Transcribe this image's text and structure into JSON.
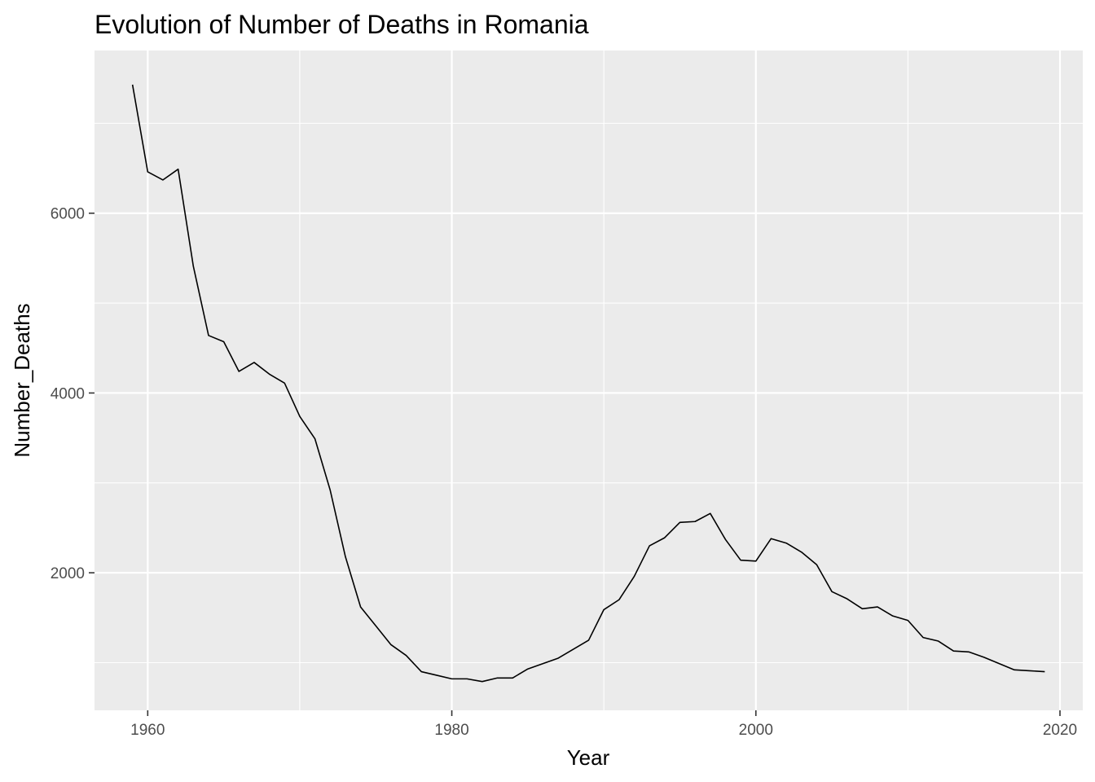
{
  "chart_data": {
    "type": "line",
    "title": "Evolution of Number of Deaths in Romania",
    "xlabel": "Year",
    "ylabel": "Number_Deaths",
    "xlim": [
      1956.5,
      2021.5
    ],
    "ylim": [
      470,
      7810
    ],
    "x_ticks": [
      1960,
      1980,
      2000,
      2020
    ],
    "x_tick_labels": [
      "1960",
      "1980",
      "2000",
      "2020"
    ],
    "x_minor_ticks": [
      1970,
      1990,
      2010
    ],
    "y_ticks": [
      2000,
      4000,
      6000
    ],
    "y_tick_labels": [
      "2000",
      "4000",
      "6000"
    ],
    "y_minor_ticks": [
      1000,
      3000,
      5000,
      7000
    ],
    "grid": true,
    "legend": "none",
    "colors": {
      "panel": "#EBEBEB",
      "grid": "#FFFFFF",
      "line": "#000000"
    },
    "series": [
      {
        "x": [
          1959,
          1960,
          1961,
          1962,
          1963,
          1964,
          1965,
          1966,
          1967,
          1968,
          1969,
          1970,
          1971,
          1972,
          1973,
          1974,
          1975,
          1976,
          1977,
          1978,
          1979,
          1980,
          1981,
          1982,
          1983,
          1984,
          1985,
          1986,
          1987,
          1988,
          1989,
          1990,
          1991,
          1992,
          1993,
          1994,
          1995,
          1996,
          1997,
          1998,
          1999,
          2000,
          2001,
          2002,
          2003,
          2004,
          2005,
          2006,
          2007,
          2008,
          2009,
          2010,
          2011,
          2012,
          2013,
          2014,
          2015,
          2016,
          2017,
          2018,
          2019
        ],
        "values": [
          7430,
          6460,
          6370,
          6490,
          5410,
          4640,
          4570,
          4240,
          4340,
          4210,
          4110,
          3740,
          3490,
          2920,
          2180,
          1620,
          1410,
          1200,
          1080,
          900,
          860,
          820,
          820,
          790,
          830,
          830,
          930,
          990,
          1050,
          1150,
          1250,
          1590,
          1700,
          1960,
          2300,
          2390,
          2560,
          2570,
          2660,
          2370,
          2140,
          2130,
          2380,
          2330,
          2230,
          2090,
          1790,
          1710,
          1600,
          1620,
          1520,
          1470,
          1280,
          1240,
          1130,
          1120,
          1060,
          990,
          920,
          910,
          900
        ]
      }
    ]
  }
}
